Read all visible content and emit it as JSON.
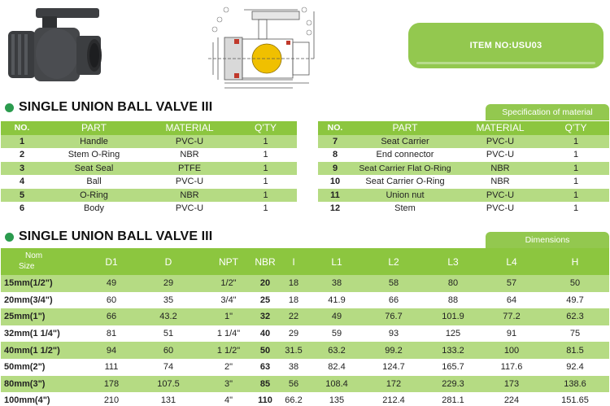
{
  "item_box": {
    "label": "ITEM NO:USU03"
  },
  "section1": {
    "title": "SINGLE UNION BALL VALVE III",
    "tab": "Specification of material"
  },
  "section2": {
    "title": "SINGLE UNION BALL VALVE III",
    "tab": "Dimensions"
  },
  "parts_headers": [
    "NO.",
    "PART",
    "MATERIAL",
    "Q'TY"
  ],
  "parts_left": [
    {
      "no": "1",
      "part": "Handle",
      "material": "PVC-U",
      "qty": "1"
    },
    {
      "no": "2",
      "part": "Stem O-Ring",
      "material": "NBR",
      "qty": "1"
    },
    {
      "no": "3",
      "part": "Seat Seal",
      "material": "PTFE",
      "qty": "1"
    },
    {
      "no": "4",
      "part": "Ball",
      "material": "PVC-U",
      "qty": "1"
    },
    {
      "no": "5",
      "part": "O-Ring",
      "material": "NBR",
      "qty": "1"
    },
    {
      "no": "6",
      "part": "Body",
      "material": "PVC-U",
      "qty": "1"
    }
  ],
  "parts_right": [
    {
      "no": "7",
      "part": "Seat Carrier",
      "material": "PVC-U",
      "qty": "1"
    },
    {
      "no": "8",
      "part": "End connector",
      "material": "PVC-U",
      "qty": "1"
    },
    {
      "no": "9",
      "part": "Seat Carrier Flat O-Ring",
      "material": "NBR",
      "qty": "1"
    },
    {
      "no": "10",
      "part": "Seat Carrier O-Ring",
      "material": "NBR",
      "qty": "1"
    },
    {
      "no": "11",
      "part": "Union nut",
      "material": "PVC-U",
      "qty": "1"
    },
    {
      "no": "12",
      "part": "Stem",
      "material": "PVC-U",
      "qty": "1"
    }
  ],
  "dims_header": {
    "nom": "Nom",
    "size": "Size",
    "cols": [
      "D1",
      "D",
      "NPT",
      "NBR",
      "I",
      "L1",
      "L2",
      "L3",
      "L4",
      "H"
    ]
  },
  "dims_rows": [
    {
      "size": "15mm(1/2\")",
      "vals": [
        "49",
        "29",
        "1/2\"",
        "20",
        "18",
        "38",
        "58",
        "80",
        "57",
        "50"
      ]
    },
    {
      "size": "20mm(3/4\")",
      "vals": [
        "60",
        "35",
        "3/4\"",
        "25",
        "18",
        "41.9",
        "66",
        "88",
        "64",
        "49.7"
      ]
    },
    {
      "size": "25mm(1\")",
      "vals": [
        "66",
        "43.2",
        "1\"",
        "32",
        "22",
        "49",
        "76.7",
        "101.9",
        "77.2",
        "62.3"
      ]
    },
    {
      "size": "32mm(1 1/4\")",
      "vals": [
        "81",
        "51",
        "1 1/4\"",
        "40",
        "29",
        "59",
        "93",
        "125",
        "91",
        "75"
      ]
    },
    {
      "size": "40mm(1 1/2\")",
      "vals": [
        "94",
        "60",
        "1 1/2\"",
        "50",
        "31.5",
        "63.2",
        "99.2",
        "133.2",
        "100",
        "81.5"
      ]
    },
    {
      "size": "50mm(2\")",
      "vals": [
        "111",
        "74",
        "2\"",
        "63",
        "38",
        "82.4",
        "124.7",
        "165.7",
        "117.6",
        "92.4"
      ]
    },
    {
      "size": "80mm(3\")",
      "vals": [
        "178",
        "107.5",
        "3\"",
        "85",
        "56",
        "108.4",
        "172",
        "229.3",
        "173",
        "138.6"
      ]
    },
    {
      "size": "100mm(4\")",
      "vals": [
        "210",
        "131",
        "4\"",
        "110",
        "66.2",
        "135",
        "212.4",
        "281.1",
        "224",
        "151.65"
      ]
    }
  ],
  "icons": {
    "photo": "ball-valve-photo",
    "drawing": "technical-drawing",
    "bullet": "green-dot-icon"
  },
  "colors": {
    "header_green": "#8cc63f",
    "row_green": "#b5db83",
    "bullet": "#2b9b4e",
    "box_green": "#93c84f"
  }
}
